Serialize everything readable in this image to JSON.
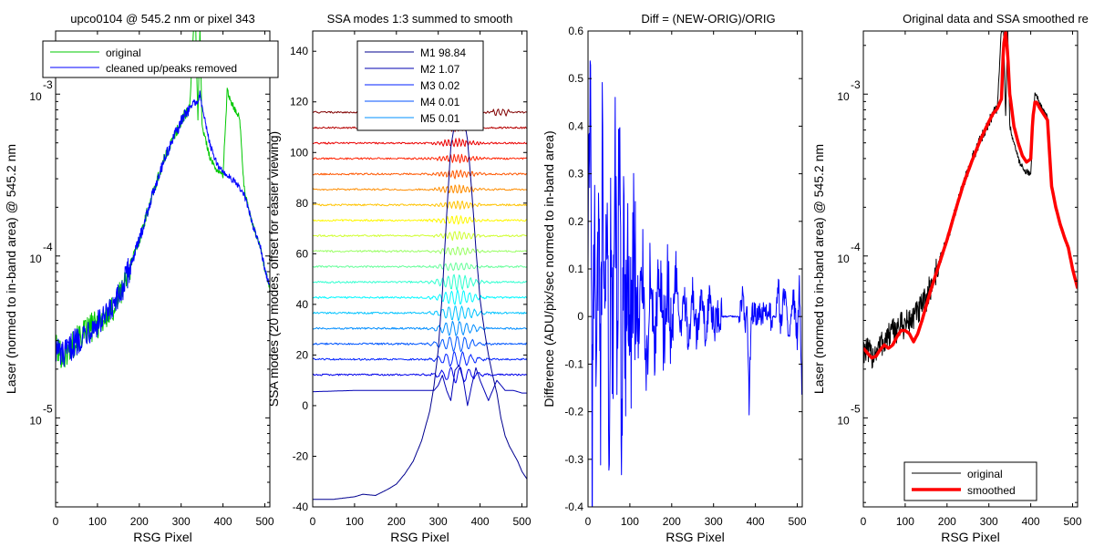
{
  "chart_data": [
    {
      "type": "line",
      "title": "upco0104 @ 545.2 nm or pixel 343",
      "xlabel": "RSG Pixel",
      "ylabel": "Laser (normed to in-band area) @ 545.2 nm",
      "xlim": [
        0,
        512
      ],
      "yscale": "log",
      "ylim_log10": [
        -5.55,
        -2.61
      ],
      "xticks": [
        "0",
        "100",
        "200",
        "300",
        "400",
        "500"
      ],
      "yticks": [
        {
          "base": "10",
          "exp": "-3",
          "log": -3
        },
        {
          "base": "10",
          "exp": "-4",
          "log": -4
        },
        {
          "base": "10",
          "exp": "-5",
          "log": -5
        }
      ],
      "legend": {
        "placement": "top",
        "entries": [
          {
            "label": "original",
            "color": "#00c800"
          },
          {
            "label": "cleaned up/peaks removed",
            "color": "#0000ff"
          }
        ]
      },
      "series": [
        {
          "name": "original",
          "color": "#00c800",
          "x": [
            0,
            20,
            40,
            60,
            80,
            100,
            120,
            140,
            160,
            180,
            200,
            220,
            240,
            260,
            280,
            300,
            310,
            320,
            330,
            335,
            340,
            345,
            350,
            360,
            370,
            380,
            390,
            400,
            410,
            420,
            430,
            440,
            450,
            460,
            470,
            480,
            490,
            500,
            512
          ],
          "ylog": [
            -4.57,
            -4.62,
            -4.55,
            -4.5,
            -4.45,
            -4.42,
            -4.38,
            -4.32,
            -4.2,
            -4.05,
            -3.9,
            -3.72,
            -3.55,
            -3.4,
            -3.28,
            -3.17,
            -3.12,
            -3.09,
            -2.6,
            -2.6,
            -3.15,
            -2.6,
            -3.2,
            -3.3,
            -3.4,
            -3.45,
            -3.48,
            -3.5,
            -2.98,
            -3.05,
            -3.1,
            -3.15,
            -3.57,
            -3.7,
            -3.8,
            -3.88,
            -3.95,
            -4.08,
            -4.2
          ]
        },
        {
          "name": "cleaned up/peaks removed",
          "color": "#0000ff",
          "x": [
            0,
            20,
            40,
            60,
            80,
            100,
            120,
            140,
            160,
            180,
            200,
            220,
            240,
            260,
            280,
            300,
            310,
            320,
            330,
            340,
            345,
            350,
            360,
            370,
            380,
            390,
            400,
            410,
            420,
            430,
            440,
            450,
            460,
            470,
            480,
            490,
            500,
            512
          ],
          "ylog": [
            -4.57,
            -4.62,
            -4.55,
            -4.5,
            -4.45,
            -4.42,
            -4.38,
            -4.32,
            -4.2,
            -4.05,
            -3.9,
            -3.72,
            -3.55,
            -3.4,
            -3.28,
            -3.17,
            -3.12,
            -3.09,
            -3.05,
            -3.05,
            -3.0,
            -3.08,
            -3.2,
            -3.32,
            -3.4,
            -3.45,
            -3.48,
            -3.5,
            -3.52,
            -3.55,
            -3.58,
            -3.62,
            -3.7,
            -3.8,
            -3.88,
            -3.95,
            -4.08,
            -4.2
          ]
        }
      ]
    },
    {
      "type": "line",
      "title": "SSA modes 1:3 summed to smooth",
      "xlabel": "RSG Pixel",
      "ylabel": "SSA modes (20 modes, offset for easier viewing)",
      "xlim": [
        0,
        512
      ],
      "ylim": [
        -40,
        148
      ],
      "xticks": [
        "0",
        "100",
        "200",
        "300",
        "400",
        "500"
      ],
      "yticks": [
        -40,
        -20,
        0,
        20,
        40,
        60,
        80,
        100,
        120,
        140
      ],
      "mode_count": 20,
      "mode_spacing": 6.1,
      "legend": {
        "placement": "top-center",
        "entries": [
          {
            "label": "M1 98.84",
            "color": "#00008f"
          },
          {
            "label": "M2 1.07",
            "color": "#0000b0"
          },
          {
            "label": "M3 0.02",
            "color": "#0020ff"
          },
          {
            "label": "M4 0.01",
            "color": "#0050ff"
          },
          {
            "label": "M5 0.01",
            "color": "#0090ff"
          }
        ]
      },
      "mode1": {
        "x": [
          0,
          50,
          100,
          120,
          150,
          180,
          200,
          220,
          240,
          260,
          280,
          290,
          300,
          310,
          320,
          330,
          340,
          350,
          360,
          370,
          380,
          390,
          400,
          410,
          420,
          430,
          440,
          450,
          460,
          470,
          480,
          490,
          500,
          512
        ],
        "y": [
          -37,
          -37,
          -36,
          -35,
          -35.5,
          -33,
          -31,
          -27,
          -22,
          -14,
          -2,
          8,
          22,
          45,
          75,
          102,
          112,
          118,
          115,
          105,
          85,
          62,
          42,
          30,
          20,
          12,
          5,
          -5,
          -12,
          -16,
          -19,
          -22,
          -26,
          -29
        ]
      },
      "mode2": {
        "x": [
          0,
          100,
          200,
          260,
          290,
          300,
          310,
          320,
          330,
          340,
          350,
          360,
          370,
          380,
          390,
          400,
          420,
          440,
          460,
          480,
          500,
          512
        ],
        "y": [
          5.5,
          6,
          6,
          6,
          6,
          8,
          12,
          6,
          2,
          14,
          16,
          10,
          0,
          8,
          15,
          10,
          2,
          10,
          6,
          6,
          5,
          5
        ]
      }
    },
    {
      "type": "line",
      "title": "Diff = (NEW-ORIG)/ORIG",
      "xlabel": "RSG Pixel",
      "ylabel": "Difference (ADU/pix/sec normed to in-band area)",
      "xlim": [
        0,
        512
      ],
      "ylim": [
        -0.4,
        0.6
      ],
      "xticks": [
        "0",
        "100",
        "200",
        "300",
        "400",
        "500"
      ],
      "yticks": [
        "-0.4",
        "-0.3",
        "-0.2",
        "-0.1",
        "0",
        "0.1",
        "0.2",
        "0.3",
        "0.4",
        "0.5",
        "0.6"
      ],
      "series": [
        {
          "name": "",
          "color": "#0000ff",
          "x": [
            0,
            5,
            10,
            15,
            20,
            25,
            30,
            35,
            40,
            45,
            50,
            55,
            60,
            65,
            70,
            75,
            80,
            85,
            90,
            95,
            100,
            110,
            120,
            130,
            140,
            150,
            160,
            170,
            180,
            190,
            200,
            210,
            220,
            230,
            240,
            250,
            260,
            270,
            280,
            290,
            300,
            310,
            320,
            340,
            360,
            370,
            375,
            380,
            385,
            390,
            400,
            420,
            440,
            450,
            455,
            460,
            470,
            480,
            490,
            500,
            505,
            512
          ],
          "y": [
            0.05,
            0.5,
            -0.35,
            0.3,
            -0.28,
            0.2,
            -0.25,
            0.42,
            -0.2,
            0.25,
            -0.22,
            0.15,
            -0.18,
            0.3,
            -0.15,
            0.42,
            -0.2,
            0.12,
            -0.12,
            0.2,
            -0.1,
            0.15,
            -0.08,
            0.12,
            -0.1,
            0.1,
            -0.08,
            0.08,
            -0.06,
            0.06,
            -0.06,
            0.1,
            -0.04,
            0.05,
            -0.05,
            0.05,
            -0.04,
            0.04,
            -0.03,
            0.04,
            -0.02,
            0.0,
            0.0,
            0.0,
            0.0,
            0.05,
            -0.03,
            0.04,
            -0.19,
            0.02,
            0.0,
            0.0,
            0.0,
            0.0,
            0.07,
            -0.02,
            0.05,
            -0.03,
            0.05,
            -0.05,
            0.06,
            -0.17
          ]
        }
      ]
    },
    {
      "type": "line",
      "title": "Original data and SSA smoothed re",
      "xlabel": "RSG Pixel",
      "ylabel": "Laser (normed to in-band area) @ 545.2 nm",
      "xlim": [
        0,
        512
      ],
      "yscale": "log",
      "ylim_log10": [
        -5.55,
        -2.61
      ],
      "xticks": [
        "0",
        "100",
        "200",
        "300",
        "400",
        "500"
      ],
      "yticks": [
        {
          "base": "10",
          "exp": "-3",
          "log": -3
        },
        {
          "base": "10",
          "exp": "-4",
          "log": -4
        },
        {
          "base": "10",
          "exp": "-5",
          "log": -5
        }
      ],
      "legend": {
        "placement": "bottom",
        "entries": [
          {
            "label": "original",
            "color": "#000000"
          },
          {
            "label": "smoothed",
            "color": "#ff0000"
          }
        ]
      },
      "series": [
        {
          "name": "original",
          "color": "#000000",
          "x": [
            0,
            20,
            40,
            60,
            80,
            100,
            120,
            140,
            160,
            180,
            200,
            220,
            240,
            260,
            280,
            300,
            310,
            320,
            330,
            335,
            340,
            345,
            350,
            360,
            370,
            380,
            390,
            400,
            410,
            420,
            430,
            440,
            450,
            460,
            470,
            480,
            490,
            500,
            512
          ],
          "ylog": [
            -4.57,
            -4.62,
            -4.55,
            -4.5,
            -4.45,
            -4.42,
            -4.38,
            -4.32,
            -4.2,
            -4.05,
            -3.9,
            -3.72,
            -3.55,
            -3.4,
            -3.28,
            -3.17,
            -3.12,
            -3.09,
            -2.6,
            -2.6,
            -3.15,
            -2.6,
            -3.2,
            -3.3,
            -3.4,
            -3.45,
            -3.48,
            -3.5,
            -2.98,
            -3.05,
            -3.1,
            -3.15,
            -3.57,
            -3.7,
            -3.8,
            -3.88,
            -3.95,
            -4.08,
            -4.2
          ]
        },
        {
          "name": "smoothed",
          "color": "#ff0000",
          "x": [
            0,
            10,
            20,
            30,
            40,
            50,
            60,
            70,
            80,
            90,
            100,
            110,
            120,
            130,
            140,
            160,
            180,
            200,
            220,
            240,
            260,
            280,
            300,
            310,
            320,
            330,
            335,
            340,
            345,
            350,
            355,
            360,
            370,
            380,
            390,
            400,
            405,
            410,
            415,
            420,
            430,
            440,
            450,
            460,
            470,
            480,
            490,
            500,
            512
          ],
          "ylog": [
            -4.57,
            -4.6,
            -4.63,
            -4.62,
            -4.58,
            -4.55,
            -4.57,
            -4.55,
            -4.5,
            -4.46,
            -4.46,
            -4.48,
            -4.53,
            -4.48,
            -4.4,
            -4.22,
            -4.06,
            -3.9,
            -3.72,
            -3.55,
            -3.41,
            -3.28,
            -3.17,
            -3.12,
            -3.09,
            -3.03,
            -2.7,
            -2.62,
            -2.75,
            -3.0,
            -3.1,
            -3.2,
            -3.3,
            -3.38,
            -3.42,
            -3.4,
            -3.15,
            -3.05,
            -3.05,
            -3.08,
            -3.12,
            -3.16,
            -3.57,
            -3.7,
            -3.8,
            -3.88,
            -3.95,
            -4.08,
            -4.2
          ]
        }
      ]
    }
  ]
}
